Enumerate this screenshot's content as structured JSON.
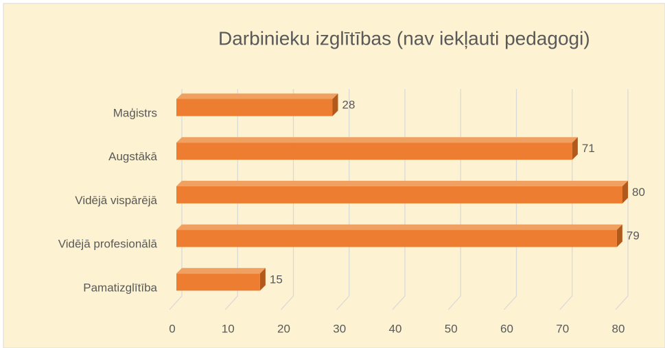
{
  "chart_data": {
    "type": "bar3d_horizontal",
    "title": "Darbinieku izglītības (nav iekļauti pedagogi)",
    "categories": [
      "Maģistrs",
      "Augstākā",
      "Vidējā vispārējā",
      "Vidējā profesionālā",
      "Pamatizglītība"
    ],
    "values": [
      28,
      71,
      80,
      79,
      15
    ],
    "color": "#ed7d31",
    "xlim": [
      0,
      80
    ],
    "xticks": [
      0,
      10,
      20,
      30,
      40,
      50,
      60,
      70,
      80
    ],
    "grid": true
  }
}
